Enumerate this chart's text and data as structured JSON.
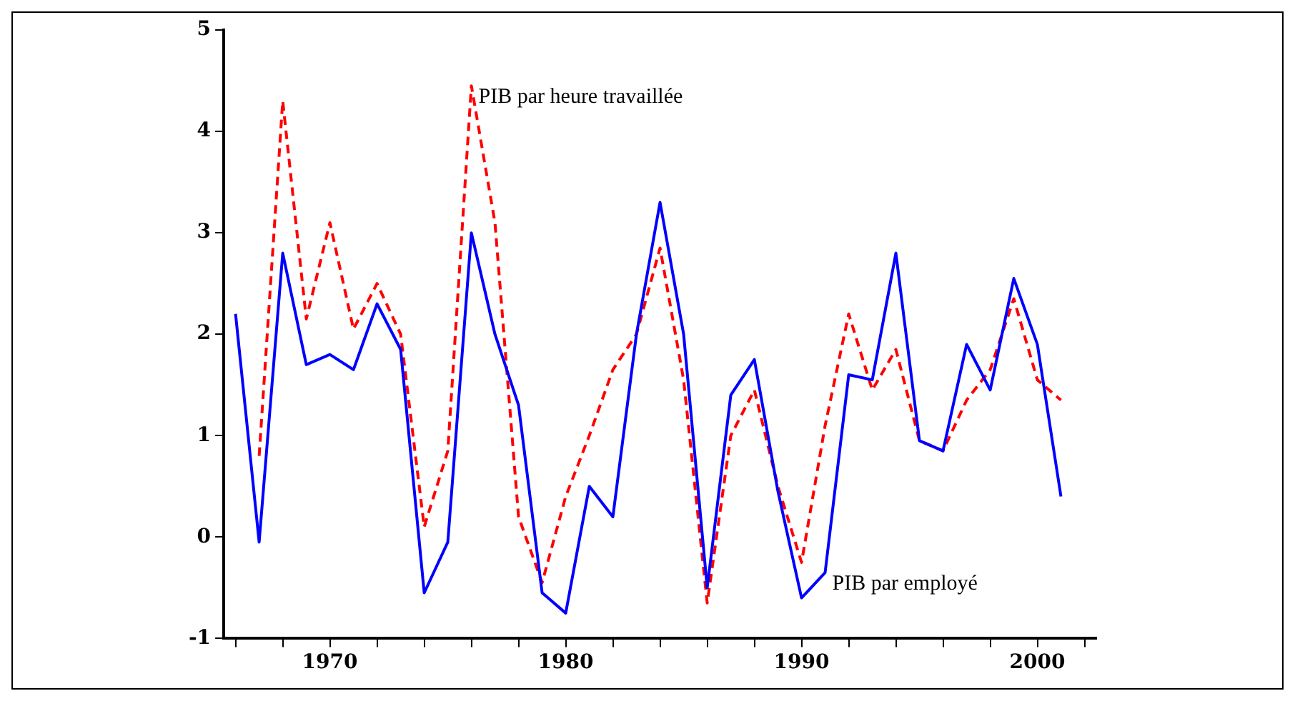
{
  "chart_data": {
    "type": "line",
    "x": [
      1966,
      1967,
      1968,
      1969,
      1970,
      1971,
      1972,
      1973,
      1974,
      1975,
      1976,
      1977,
      1978,
      1979,
      1980,
      1981,
      1982,
      1983,
      1984,
      1985,
      1986,
      1987,
      1988,
      1989,
      1990,
      1991,
      1992,
      1993,
      1994,
      1995,
      1996,
      1997,
      1998,
      1999,
      2000,
      2001
    ],
    "series": [
      {
        "color": "#0000ff",
        "line_style": "solid",
        "values": [
          2.2,
          -0.05,
          2.8,
          1.7,
          1.8,
          1.65,
          2.3,
          1.85,
          -0.55,
          -0.05,
          3.0,
          2.0,
          1.3,
          -0.55,
          -0.75,
          0.5,
          0.2,
          2.0,
          3.3,
          2.0,
          -0.5,
          1.4,
          1.75,
          0.45,
          -0.6,
          -0.35,
          1.6,
          1.55,
          2.8,
          0.95,
          0.85,
          1.9,
          1.45,
          2.55,
          1.9,
          0.4
        ]
      },
      {
        "color": "#ff0000",
        "line_style": "dashed",
        "values": [
          null,
          0.8,
          4.3,
          2.15,
          3.1,
          2.05,
          2.5,
          2.0,
          0.1,
          0.85,
          4.45,
          3.1,
          0.2,
          -0.45,
          0.4,
          1.0,
          1.65,
          2.0,
          2.85,
          1.55,
          -0.65,
          1.0,
          1.45,
          0.5,
          -0.25,
          1.1,
          2.2,
          1.45,
          1.85,
          0.95,
          0.85,
          1.35,
          1.65,
          2.35,
          1.55,
          1.35
        ]
      }
    ],
    "xlim": [
      1965.5,
      2002.5
    ],
    "xticks": [
      {
        "value": 1966,
        "label": null
      },
      {
        "value": 1968,
        "label": null
      },
      1970,
      {
        "value": 1972,
        "label": null
      },
      {
        "value": 1974,
        "label": null
      },
      {
        "value": 1976,
        "label": null
      },
      {
        "value": 1978,
        "label": null
      },
      1980,
      {
        "value": 1982,
        "label": null
      },
      {
        "value": 1984,
        "label": null
      },
      {
        "value": 1986,
        "label": null
      },
      {
        "value": 1988,
        "label": null
      },
      1990,
      {
        "value": 1992,
        "label": null
      },
      {
        "value": 1994,
        "label": null
      },
      {
        "value": 1996,
        "label": null
      },
      {
        "value": 1998,
        "label": null
      },
      2000,
      {
        "value": 2002,
        "label": null
      }
    ],
    "ylim": [
      -1,
      5
    ],
    "yticks": [
      -1,
      0,
      1,
      2,
      3,
      4,
      5
    ],
    "grid": false,
    "legend": false,
    "marker": "none",
    "annotations": [
      {
        "text": "PIB par heure travaillée",
        "x": 1976,
        "y": 4.45
      },
      {
        "text": "PIB par employé",
        "x": 1991,
        "y": -0.35
      }
    ]
  }
}
